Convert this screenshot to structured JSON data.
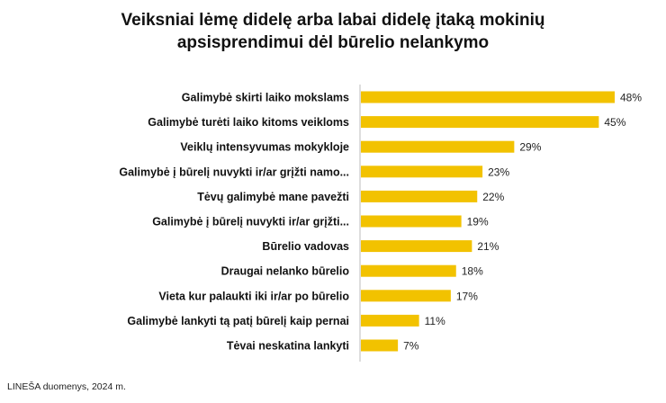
{
  "chart_data": {
    "type": "bar",
    "orientation": "horizontal",
    "title_lines": [
      "Veiksniai lėmę didelę arba labai didelę įtaką mokinių",
      "apsisprendimui dėl būrelio nelankymo"
    ],
    "categories": [
      "Galimybė skirti laiko mokslams",
      "Galimybė turėti laiko kitoms veikloms",
      "Veiklų intensyvumas mokykloje",
      "Galimybė į būrelį nuvykti ir/ar grįžti namo...",
      "Tėvų galimybė mane pavežti",
      "Galimybė į būrelį nuvykti ir/ar grįžti...",
      "Būrelio vadovas",
      "Draugai nelanko būrelio",
      "Vieta kur palaukti iki ir/ar po būrelio",
      "Galimybė lankyti tą patį būrelį kaip pernai",
      "Tėvai neskatina lankyti"
    ],
    "values": [
      48,
      45,
      29,
      23,
      22,
      19,
      21,
      18,
      17,
      11,
      7
    ],
    "value_labels": [
      "48%",
      "45%",
      "29%",
      "23%",
      "22%",
      "19%",
      "21%",
      "18%",
      "17%",
      "11%",
      "7%"
    ],
    "unit": "%",
    "xlim": [
      0,
      50
    ],
    "grid": false,
    "legend": "none",
    "colors": {
      "bar": "#F2C200",
      "axis": "#BBBBBB"
    }
  },
  "source": "LINEŠA duomenys, 2024 m."
}
